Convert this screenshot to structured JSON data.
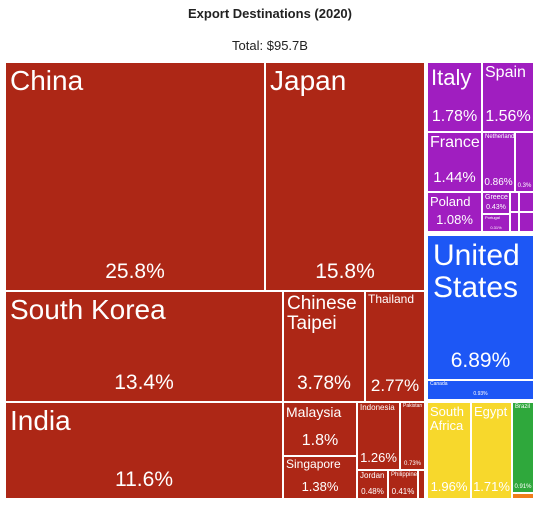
{
  "title": "Export Destinations (2020)",
  "total_label": "Total: $95.7B",
  "colors": {
    "asia": "#ad2716",
    "europe": "#a01ec0",
    "north_america": "#1d57f5",
    "africa": "#f7d82c",
    "south_america": "#2fa83c",
    "other": "#f07d1a"
  },
  "chart_data": {
    "type": "treemap",
    "title": "Export Destinations (2020)",
    "total": "Total: $95.7B",
    "items": [
      {
        "name": "China",
        "value_label": "25.8%",
        "value": 25.8,
        "region": "asia"
      },
      {
        "name": "Japan",
        "value_label": "15.8%",
        "value": 15.8,
        "region": "asia"
      },
      {
        "name": "South Korea",
        "value_label": "13.4%",
        "value": 13.4,
        "region": "asia"
      },
      {
        "name": "India",
        "value_label": "11.6%",
        "value": 11.6,
        "region": "asia"
      },
      {
        "name": "Chinese Taipei",
        "value_label": "3.78%",
        "value": 3.78,
        "region": "asia"
      },
      {
        "name": "Thailand",
        "value_label": "2.77%",
        "value": 2.77,
        "region": "asia"
      },
      {
        "name": "Malaysia",
        "value_label": "1.8%",
        "value": 1.8,
        "region": "asia"
      },
      {
        "name": "Singapore",
        "value_label": "1.38%",
        "value": 1.38,
        "region": "asia"
      },
      {
        "name": "Indonesia",
        "value_label": "1.26%",
        "value": 1.26,
        "region": "asia"
      },
      {
        "name": "Pakistan",
        "value_label": "0.73%",
        "value": 0.73,
        "region": "asia"
      },
      {
        "name": "Jordan",
        "value_label": "0.48%",
        "value": 0.48,
        "region": "asia"
      },
      {
        "name": "Philippines",
        "value_label": "0.41%",
        "value": 0.41,
        "region": "asia"
      },
      {
        "name": "",
        "value_label": "",
        "value": 0.2,
        "region": "asia"
      },
      {
        "name": "Italy",
        "value_label": "1.78%",
        "value": 1.78,
        "region": "europe"
      },
      {
        "name": "Spain",
        "value_label": "1.56%",
        "value": 1.56,
        "region": "europe"
      },
      {
        "name": "France",
        "value_label": "1.44%",
        "value": 1.44,
        "region": "europe"
      },
      {
        "name": "Netherlands",
        "value_label": "0.86%",
        "value": 0.86,
        "region": "europe"
      },
      {
        "name": "",
        "value_label": "0.3%",
        "value": 0.3,
        "region": "europe"
      },
      {
        "name": "Poland",
        "value_label": "1.08%",
        "value": 1.08,
        "region": "europe"
      },
      {
        "name": "Greece",
        "value_label": "0.43%",
        "value": 0.43,
        "region": "europe"
      },
      {
        "name": "Portugal",
        "value_label": "0.31%",
        "value": 0.31,
        "region": "europe"
      },
      {
        "name": "",
        "value_label": "",
        "value": 0.1,
        "region": "europe"
      },
      {
        "name": "",
        "value_label": "",
        "value": 0.1,
        "region": "europe"
      },
      {
        "name": "",
        "value_label": "",
        "value": 0.1,
        "region": "europe"
      },
      {
        "name": "",
        "value_label": "",
        "value": 0.1,
        "region": "europe"
      },
      {
        "name": "United States",
        "value_label": "6.89%",
        "value": 6.89,
        "region": "north_america"
      },
      {
        "name": "Canada",
        "value_label": "0.93%",
        "value": 0.93,
        "region": "north_america"
      },
      {
        "name": "South Africa",
        "value_label": "1.96%",
        "value": 1.96,
        "region": "africa"
      },
      {
        "name": "Egypt",
        "value_label": "1.71%",
        "value": 1.71,
        "region": "africa"
      },
      {
        "name": "Brazil",
        "value_label": "0.91%",
        "value": 0.91,
        "region": "south_america"
      },
      {
        "name": "",
        "value_label": "",
        "value": 0.1,
        "region": "other"
      }
    ]
  }
}
